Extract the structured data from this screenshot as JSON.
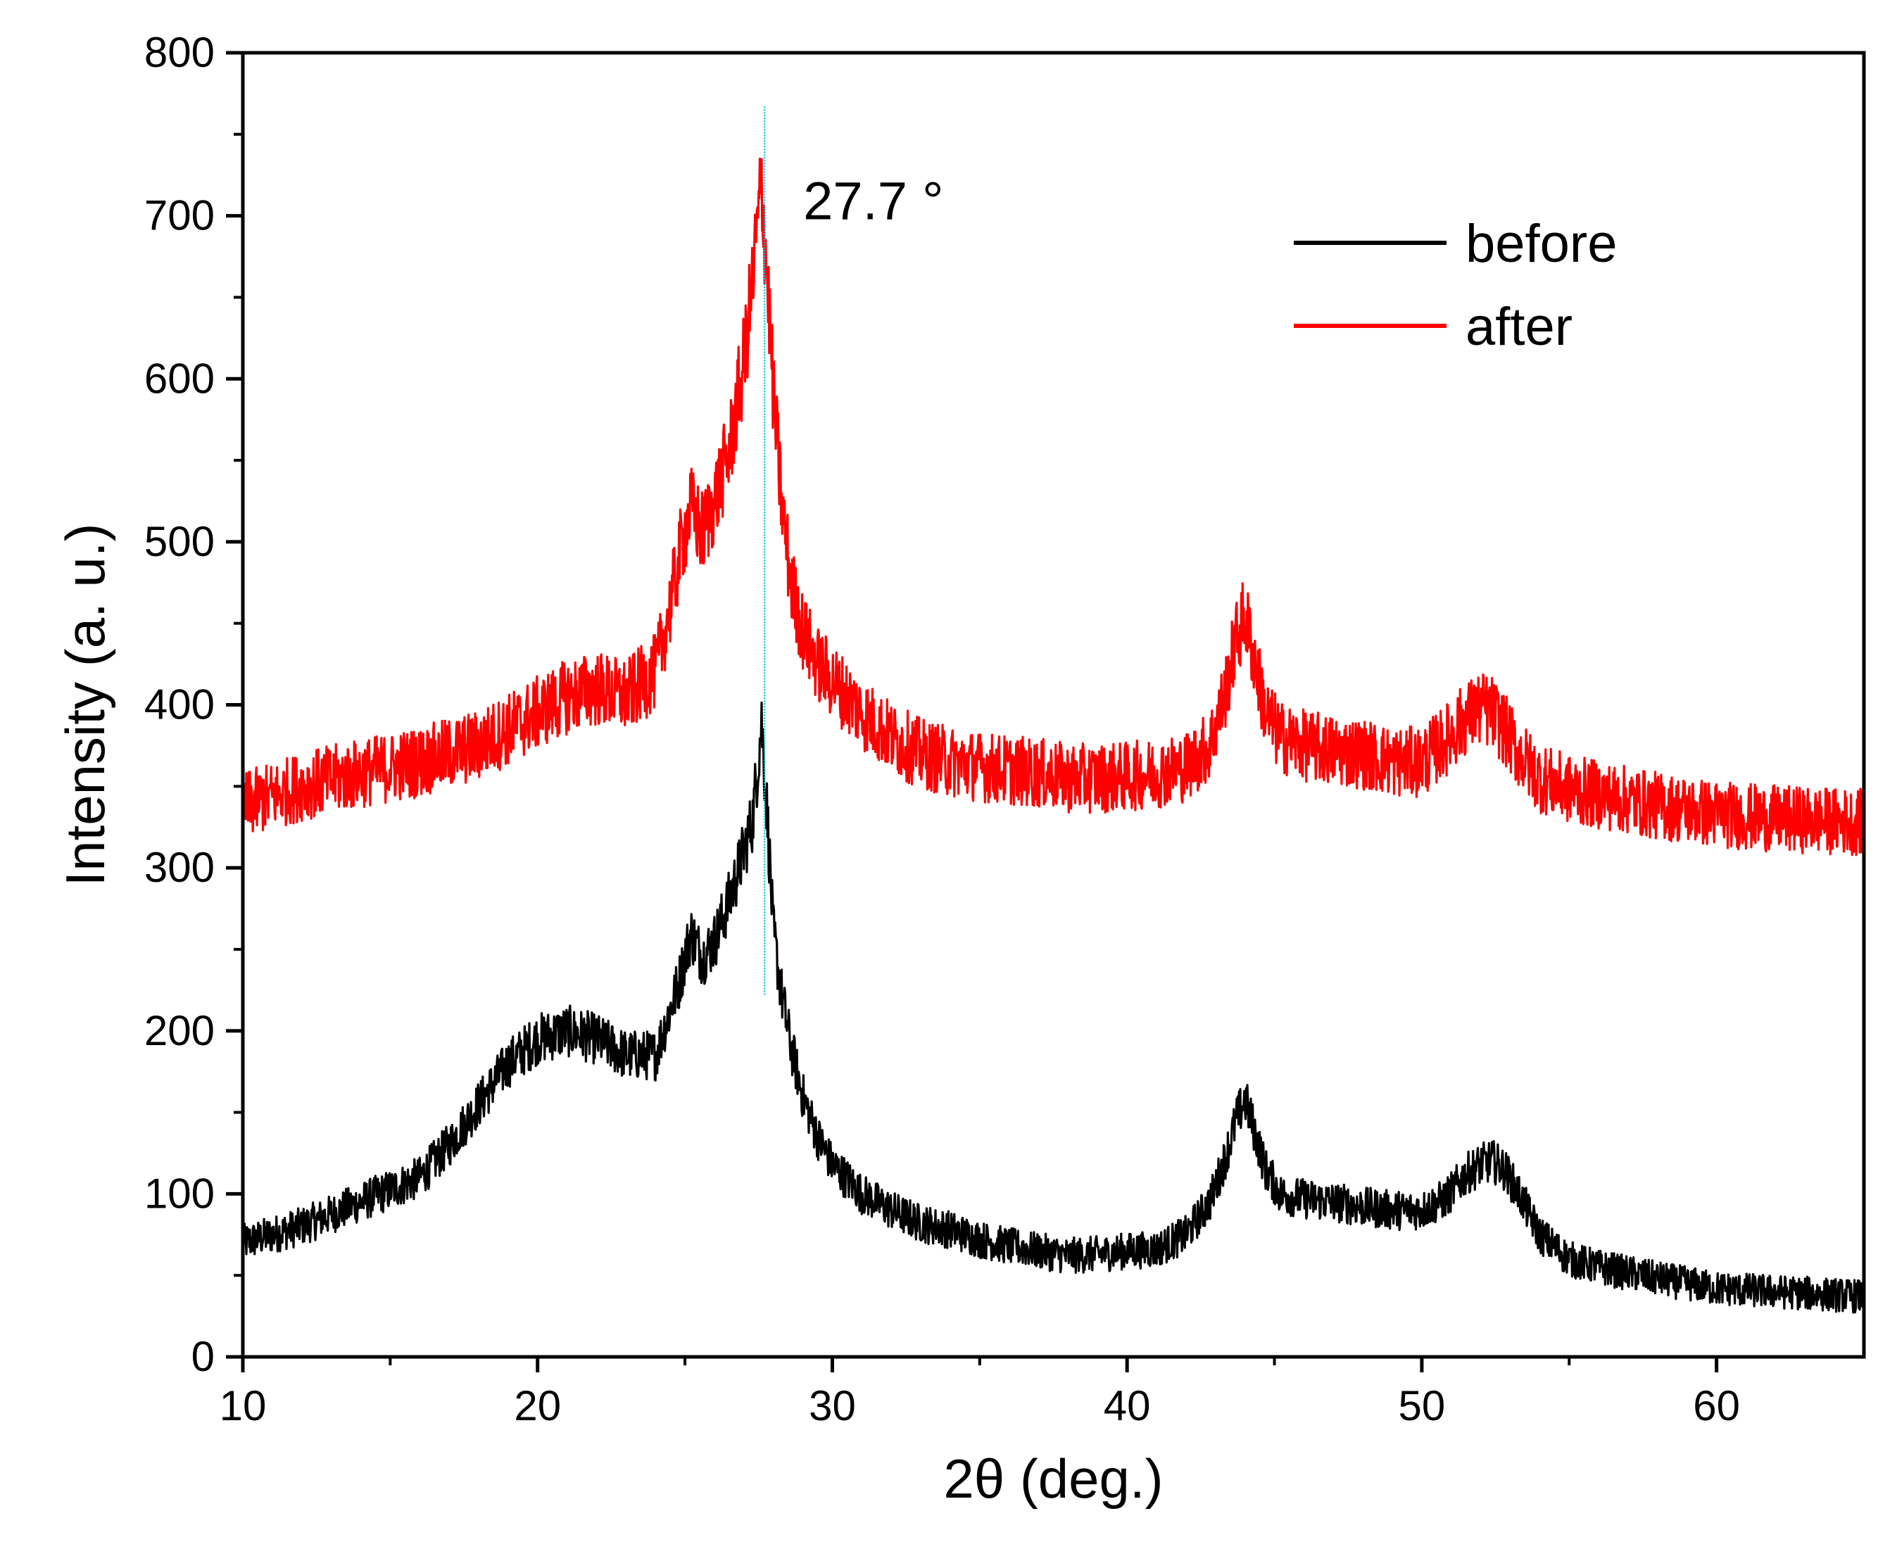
{
  "chart_data": {
    "type": "line",
    "title": "",
    "xlabel": "2θ (deg.)",
    "ylabel": "Intensity (a. u.)",
    "xlim": [
      10,
      65
    ],
    "ylim": [
      0,
      800
    ],
    "xticks": [
      10,
      20,
      30,
      40,
      50,
      60
    ],
    "yticks": [
      0,
      100,
      200,
      300,
      400,
      500,
      600,
      700,
      800
    ],
    "xtick_labels": [
      "10",
      "20",
      "30",
      "40",
      "50",
      "60"
    ],
    "ytick_labels": [
      "0",
      "100",
      "200",
      "300",
      "400",
      "500",
      "600",
      "700",
      "800"
    ],
    "legend_position": "top-right",
    "annotation": {
      "text": "27.7 °",
      "x": 27.7,
      "marker_color": "#00c8e0"
    },
    "series": [
      {
        "name": "before",
        "color": "#000000",
        "x": [
          10,
          12,
          14,
          16,
          17,
          18,
          19,
          20,
          21,
          22,
          23,
          24,
          24.8,
          25.2,
          25.6,
          26.0,
          26.5,
          27.0,
          27.3,
          27.6,
          27.8,
          28.0,
          28.3,
          28.6,
          29.0,
          29.5,
          30,
          31,
          32,
          33,
          34,
          35,
          36,
          37,
          38,
          39,
          40,
          41,
          42,
          42.8,
          43.3,
          43.7,
          44.0,
          44.3,
          44.7,
          45.2,
          46,
          47,
          48,
          49,
          50,
          50.8,
          51.5,
          52.0,
          52.4,
          52.8,
          53.3,
          54,
          55,
          56,
          58,
          60,
          62,
          65
        ],
        "y": [
          70,
          80,
          95,
          110,
          130,
          155,
          180,
          195,
          200,
          195,
          185,
          185,
          230,
          260,
          245,
          255,
          280,
          310,
          330,
          390,
          330,
          260,
          220,
          190,
          160,
          135,
          118,
          100,
          90,
          82,
          78,
          72,
          68,
          65,
          62,
          63,
          65,
          66,
          75,
          95,
          120,
          145,
          158,
          140,
          115,
          100,
          97,
          95,
          92,
          90,
          90,
          97,
          112,
          118,
          120,
          115,
          100,
          75,
          60,
          55,
          48,
          42,
          40,
          37
        ]
      },
      {
        "name": "after",
        "color": "#ff0000",
        "x": [
          10,
          12,
          14,
          16,
          17,
          18,
          19,
          20,
          21,
          22,
          23,
          24,
          24.5,
          24.9,
          25.2,
          25.6,
          26.0,
          26.5,
          27.0,
          27.3,
          27.6,
          27.8,
          28.0,
          28.3,
          28.6,
          29.0,
          29.5,
          30,
          31,
          32,
          33,
          34,
          35,
          36,
          37,
          38,
          39,
          40,
          41,
          42,
          42.8,
          43.3,
          43.7,
          44.0,
          44.3,
          44.7,
          45.2,
          46,
          47,
          48,
          49,
          50,
          50.8,
          51.5,
          52.0,
          52.4,
          52.8,
          53.3,
          54,
          55,
          56,
          58,
          60,
          62,
          65
        ],
        "y": [
          338,
          350,
          358,
          365,
          370,
          375,
          385,
          395,
          405,
          410,
          405,
          420,
          460,
          500,
          520,
          505,
          525,
          555,
          610,
          660,
          720,
          660,
          590,
          520,
          475,
          445,
          425,
          415,
          395,
          380,
          370,
          365,
          362,
          360,
          358,
          355,
          355,
          356,
          358,
          362,
          375,
          405,
          440,
          455,
          430,
          395,
          380,
          375,
          372,
          370,
          365,
          365,
          378,
          392,
          398,
          395,
          385,
          370,
          355,
          348,
          345,
          338,
          333,
          330,
          328
        ]
      }
    ]
  }
}
